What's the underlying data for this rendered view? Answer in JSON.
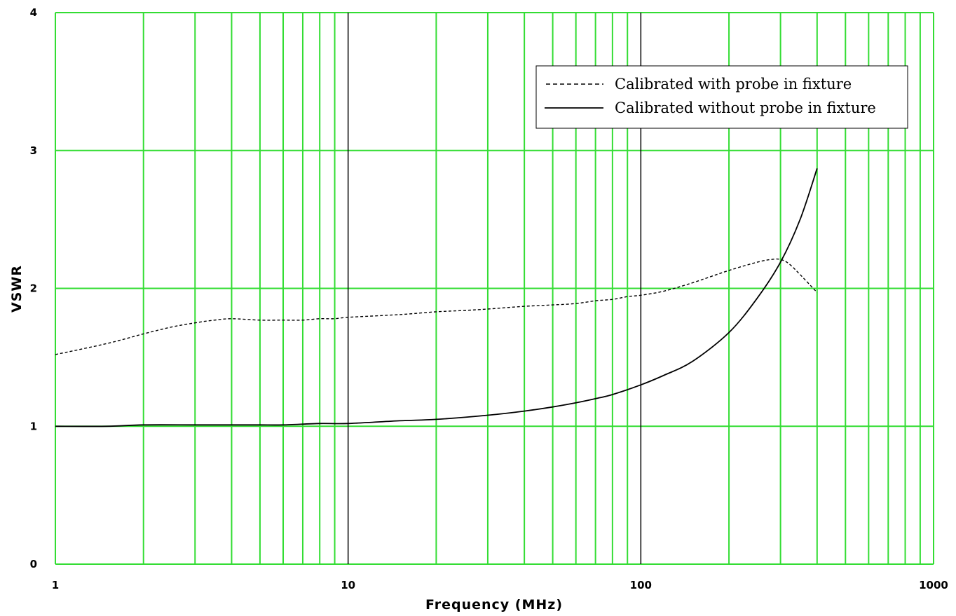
{
  "chart_data": {
    "type": "line",
    "xlabel": "Frequency (MHz)",
    "ylabel": "VSWR",
    "xscale": "log",
    "xlim": [
      1,
      1000
    ],
    "ylim": [
      0,
      4
    ],
    "x_ticks": [
      "1",
      "10",
      "100",
      "1000"
    ],
    "y_ticks": [
      "0",
      "1",
      "2",
      "3",
      "4"
    ],
    "grid": true,
    "colors": {
      "grid": "#33dd33",
      "major_grid": "#000000",
      "series": "#000000"
    },
    "legend_position": "top-right",
    "series": [
      {
        "name": "Calibrated with probe in fixture",
        "style": "dashed",
        "x": [
          1,
          1.5,
          2,
          2.5,
          3,
          3.5,
          4,
          5,
          6,
          7,
          8,
          9,
          10,
          15,
          20,
          25,
          30,
          40,
          50,
          60,
          70,
          80,
          90,
          100,
          120,
          150,
          200,
          250,
          280,
          300,
          320,
          350,
          400
        ],
        "y": [
          1.52,
          1.6,
          1.67,
          1.72,
          1.75,
          1.77,
          1.78,
          1.77,
          1.77,
          1.77,
          1.78,
          1.78,
          1.79,
          1.81,
          1.83,
          1.84,
          1.85,
          1.87,
          1.88,
          1.89,
          1.91,
          1.92,
          1.94,
          1.95,
          1.98,
          2.04,
          2.13,
          2.19,
          2.21,
          2.21,
          2.18,
          2.1,
          1.97
        ]
      },
      {
        "name": "Calibrated without probe in fixture",
        "style": "solid",
        "x": [
          1,
          1.5,
          2,
          3,
          4,
          5,
          6,
          8,
          10,
          15,
          20,
          30,
          40,
          50,
          60,
          70,
          80,
          100,
          120,
          150,
          200,
          250,
          300,
          350,
          400
        ],
        "y": [
          1.0,
          1.0,
          1.01,
          1.01,
          1.01,
          1.01,
          1.01,
          1.02,
          1.02,
          1.04,
          1.05,
          1.08,
          1.11,
          1.14,
          1.17,
          1.2,
          1.23,
          1.3,
          1.37,
          1.47,
          1.68,
          1.93,
          2.19,
          2.5,
          2.87
        ]
      }
    ]
  }
}
